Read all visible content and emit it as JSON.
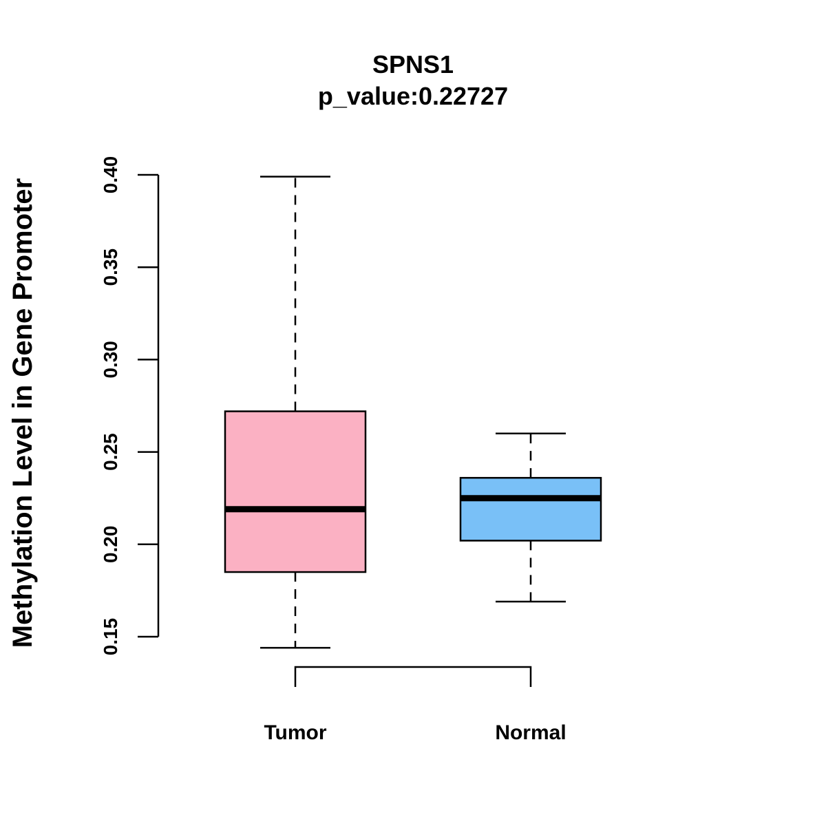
{
  "chart_data": {
    "type": "boxplot",
    "title": "SPNS1",
    "subtitle": "p_value:0.22727",
    "xlabel": "",
    "ylabel": "Methylation Level in Gene Promoter",
    "ylim": [
      0.15,
      0.4
    ],
    "yticks": [
      "0.15",
      "0.20",
      "0.25",
      "0.30",
      "0.35",
      "0.40"
    ],
    "grid": false,
    "categories": [
      "Tumor",
      "Normal"
    ],
    "series": [
      {
        "name": "Tumor",
        "min": 0.144,
        "q1": 0.185,
        "median": 0.219,
        "q3": 0.272,
        "max": 0.399,
        "color": "#FBB1C3"
      },
      {
        "name": "Normal",
        "min": 0.169,
        "q1": 0.202,
        "median": 0.225,
        "q3": 0.236,
        "max": 0.26,
        "color": "#79C0F7"
      }
    ],
    "comparison_bracket": [
      "Tumor",
      "Normal"
    ]
  }
}
